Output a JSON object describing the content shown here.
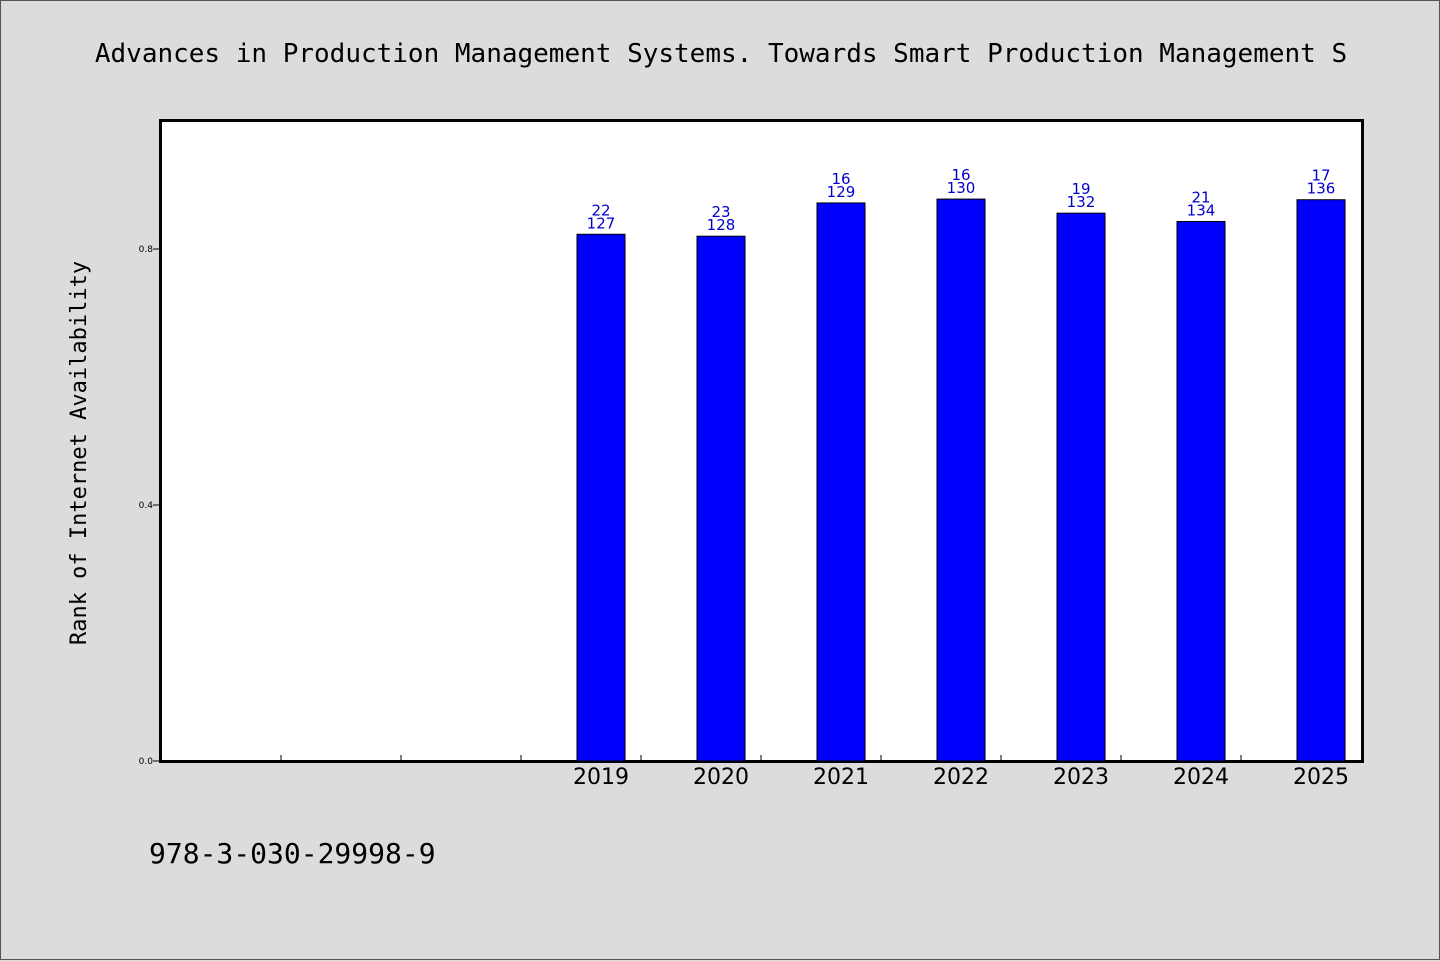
{
  "chart_data": {
    "type": "bar",
    "title": "Advances in Production Management Systems. Towards Smart Production Management S",
    "xlabel": "",
    "ylabel": "Rank of Internet Availability",
    "categories": [
      "",
      "",
      "",
      "2019",
      "2020",
      "2021",
      "2022",
      "2023",
      "2024",
      "2025"
    ],
    "values": [
      null,
      null,
      null,
      0.823,
      0.82,
      0.872,
      0.878,
      0.856,
      0.843,
      0.877
    ],
    "labels_top": [
      "",
      "",
      "",
      "22",
      "23",
      "16",
      "16",
      "19",
      "21",
      "17"
    ],
    "labels_bottom": [
      "",
      "",
      "",
      "127",
      "128",
      "129",
      "130",
      "132",
      "134",
      "136"
    ],
    "ylim": [
      0.0,
      1.0
    ],
    "yticks": [
      0.0,
      0.4,
      0.8
    ],
    "ytick_labels": [
      "0.0",
      "0.4",
      "0.8"
    ],
    "grid": false,
    "colors": {
      "bar": "#0000ff",
      "bar_label": "#0000cc",
      "background": "#dcdcdc",
      "plot_area": "#ffffff"
    }
  },
  "footer": {
    "isbn": "978-3-030-29998-9"
  }
}
